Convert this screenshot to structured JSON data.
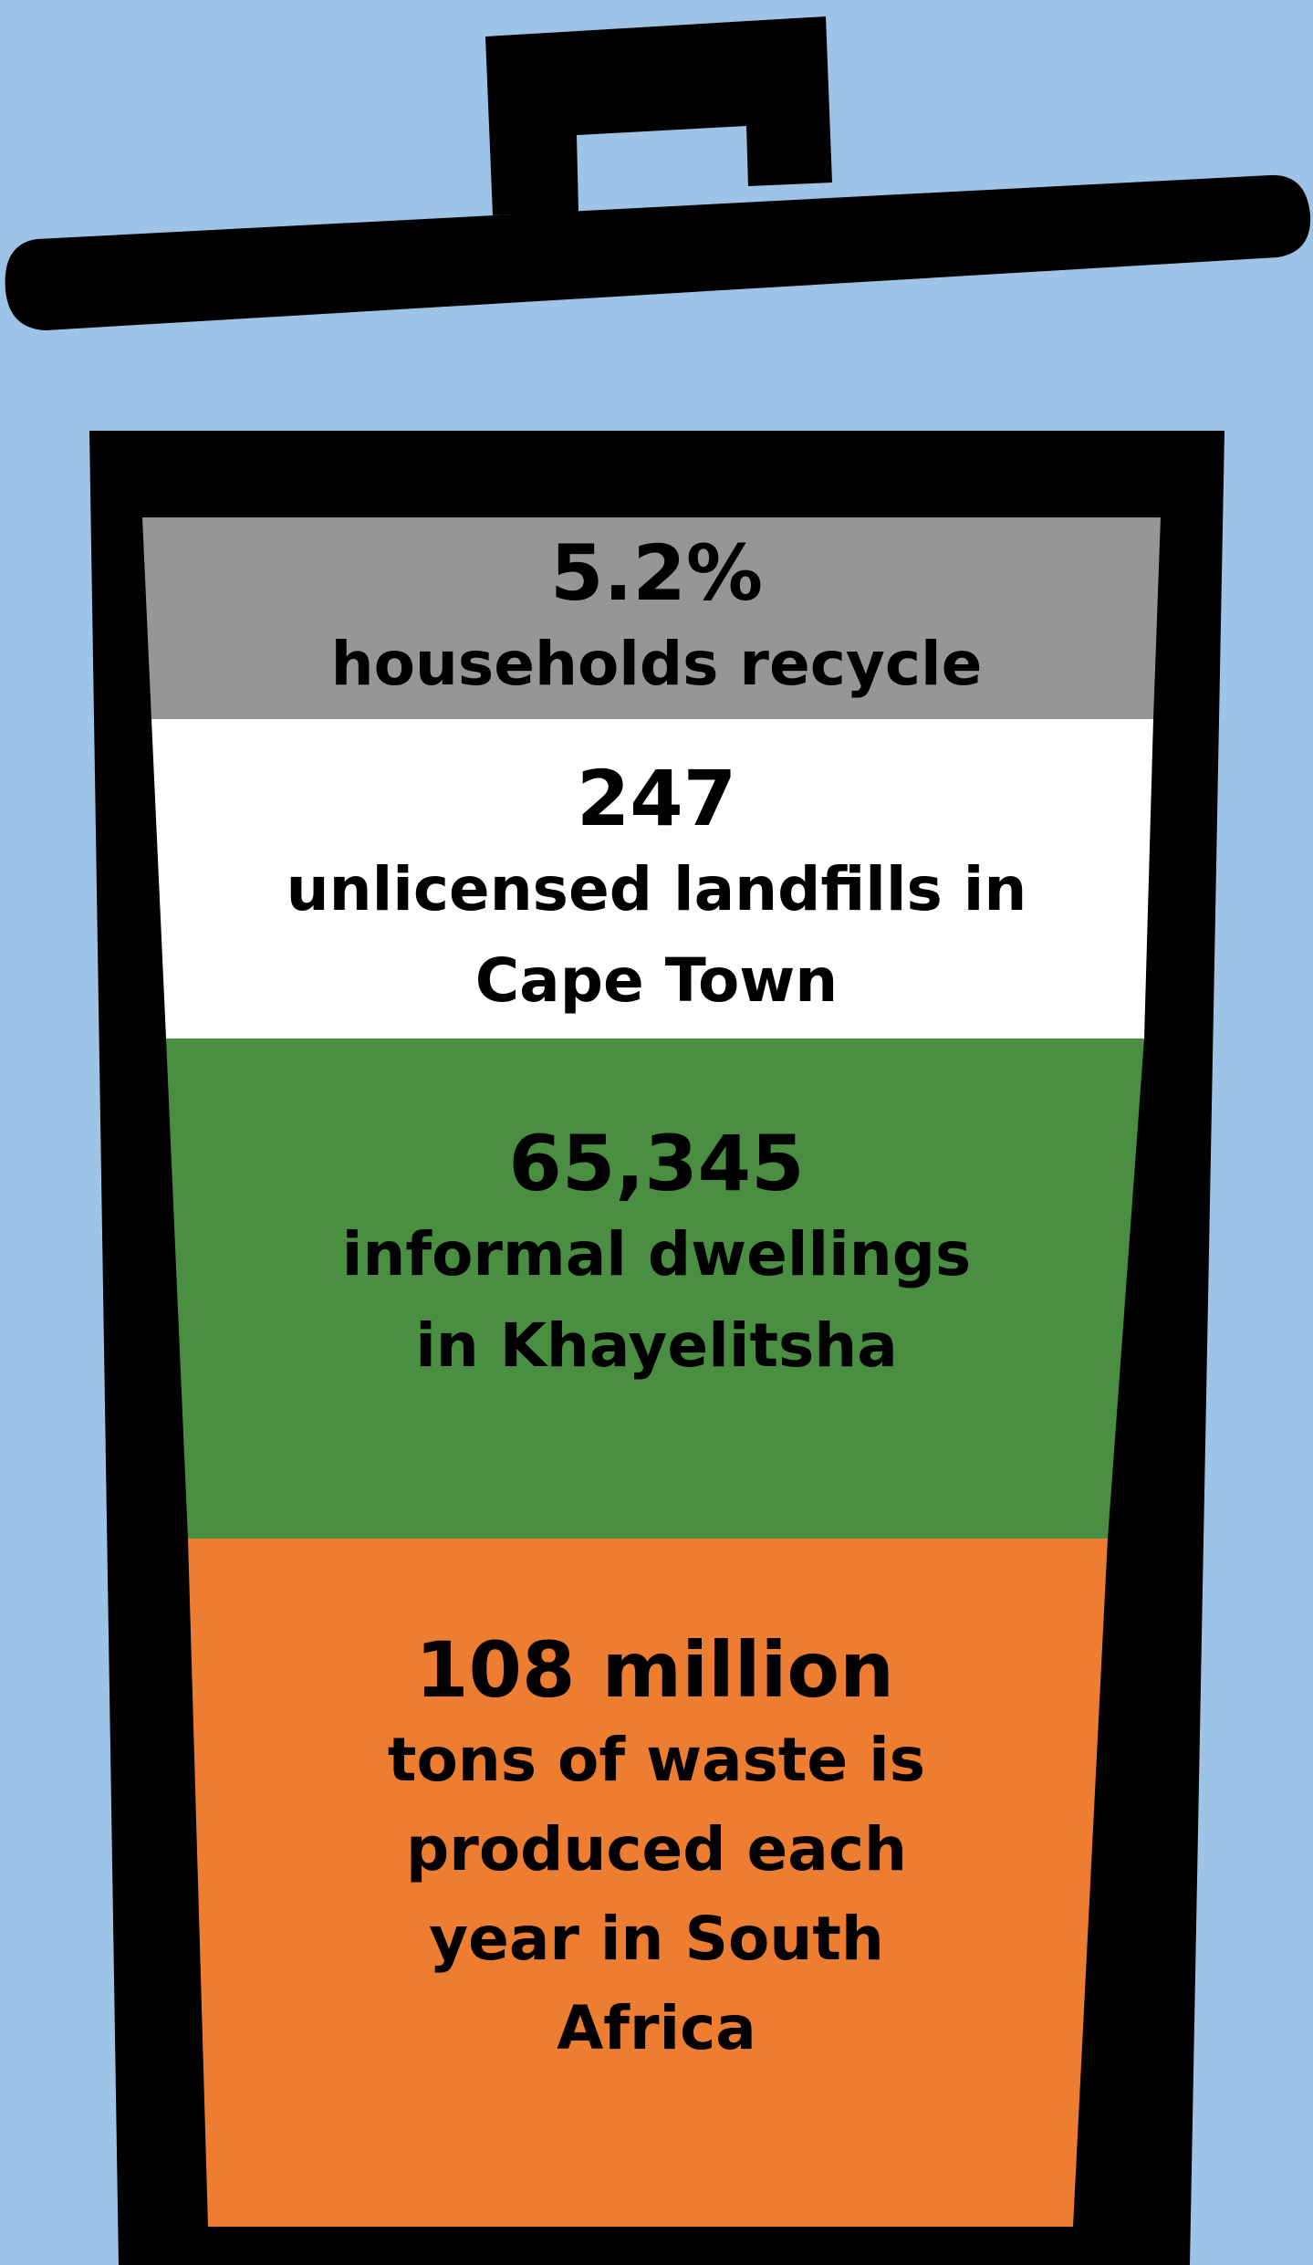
{
  "colors": {
    "background": "#9dc3e6",
    "bin_outline": "#000000",
    "layer_recycle": "#969696",
    "layer_landfills": "#ffffff",
    "layer_dwellings": "#4a8f41",
    "layer_waste": "#ed7d31"
  },
  "layers": [
    {
      "figure": "5.2%",
      "description": "households recycle"
    },
    {
      "figure": "247",
      "description": "unlicensed landfills in Cape Town"
    },
    {
      "figure": "65,345",
      "description": "informal dwellings in Khayelitsha"
    },
    {
      "figure": "108 million",
      "description": "tons of waste is produced each year in South Africa"
    }
  ]
}
